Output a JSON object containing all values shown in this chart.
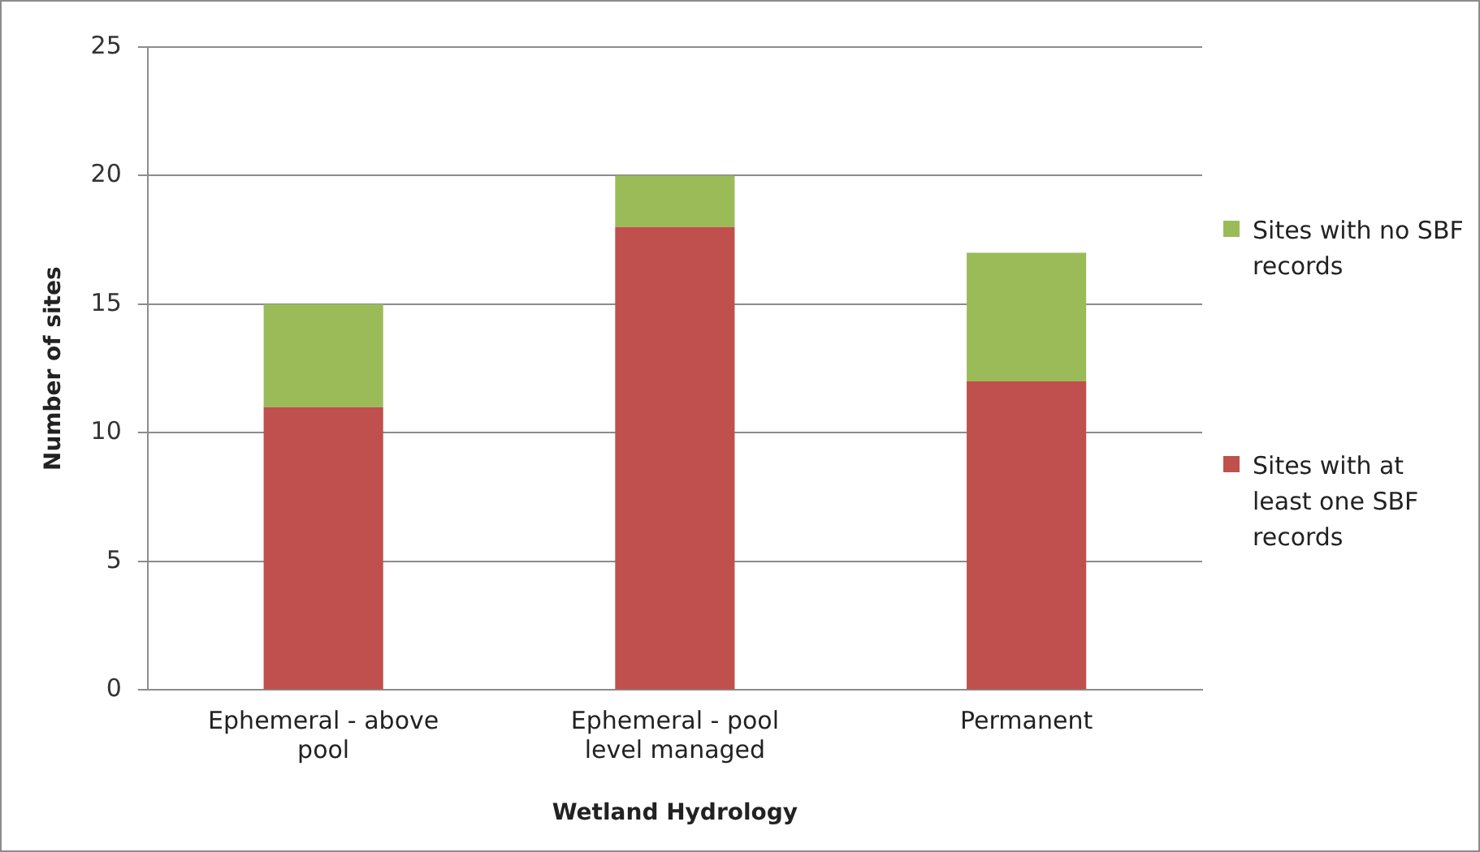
{
  "chart_data": {
    "type": "bar",
    "stacked": true,
    "xlabel": "Wetland Hydrology",
    "ylabel": "Number of sites",
    "categories": [
      "Ephemeral - above pool",
      "Ephemeral - pool level managed",
      "Permanent"
    ],
    "series": [
      {
        "name": "Sites with at least one SBF records",
        "color": "#c0504d",
        "values": [
          11,
          18,
          12
        ]
      },
      {
        "name": "Sites with no SBF records",
        "color": "#9bbb59",
        "values": [
          4,
          2,
          5
        ]
      }
    ],
    "ylim": [
      0,
      25
    ],
    "yticks": [
      0,
      5,
      10,
      15,
      20,
      25
    ],
    "grid": "y",
    "legend": "right"
  }
}
